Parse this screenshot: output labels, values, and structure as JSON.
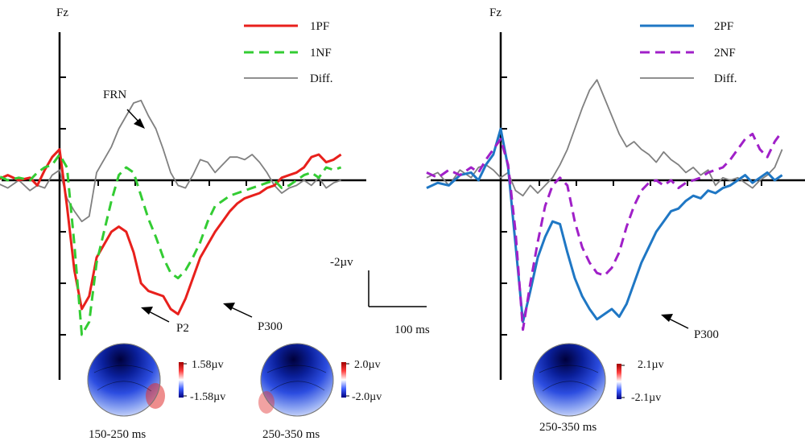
{
  "chart_data": [
    {
      "type": "line",
      "channel": "Fz",
      "x_unit": "ms",
      "y_unit": "µV",
      "y_orientation": "negative-down",
      "series": [
        {
          "name": "1PF",
          "color": "#e8201c",
          "dash": false,
          "x": [
            -200,
            -170,
            -140,
            -110,
            -80,
            -60,
            -40,
            -20,
            0,
            20,
            40,
            60,
            80,
            100,
            120,
            140,
            160,
            180,
            200,
            220,
            240,
            260,
            280,
            300,
            320,
            340,
            360,
            380,
            400,
            420,
            440,
            460,
            480,
            500,
            520,
            540,
            560,
            580,
            600,
            620,
            640,
            660,
            680,
            700,
            720,
            740,
            760
          ],
          "y": [
            0.1,
            0.0,
            0.2,
            0.0,
            0.1,
            -0.2,
            0.4,
            0.9,
            1.2,
            -1.0,
            -3.5,
            -5.0,
            -4.5,
            -3.0,
            -2.5,
            -2.0,
            -1.8,
            -2.0,
            -2.8,
            -4.0,
            -4.3,
            -4.4,
            -4.5,
            -5.0,
            -5.2,
            -4.6,
            -3.8,
            -3.0,
            -2.5,
            -2.0,
            -1.6,
            -1.2,
            -0.9,
            -0.7,
            -0.6,
            -0.5,
            -0.3,
            -0.2,
            0.1,
            0.2,
            0.3,
            0.5,
            0.9,
            1.0,
            0.7,
            0.8,
            1.0
          ]
        },
        {
          "name": "1NF",
          "color": "#33cc33",
          "dash": true,
          "x": [
            -200,
            -170,
            -140,
            -110,
            -80,
            -60,
            -40,
            -20,
            0,
            20,
            40,
            60,
            80,
            100,
            120,
            140,
            160,
            180,
            200,
            220,
            240,
            260,
            280,
            300,
            320,
            340,
            360,
            380,
            400,
            420,
            440,
            460,
            480,
            500,
            520,
            540,
            560,
            580,
            600,
            620,
            640,
            660,
            680,
            700,
            720,
            740,
            760
          ],
          "y": [
            0.1,
            0.2,
            0.0,
            0.1,
            0.0,
            0.3,
            0.5,
            0.6,
            1.0,
            0.5,
            -2.5,
            -6.0,
            -5.5,
            -3.2,
            -2.0,
            -0.8,
            0.2,
            0.5,
            0.3,
            -0.6,
            -1.5,
            -2.2,
            -3.0,
            -3.6,
            -3.8,
            -3.5,
            -3.0,
            -2.4,
            -1.6,
            -1.0,
            -0.8,
            -0.6,
            -0.5,
            -0.4,
            -0.3,
            -0.2,
            -0.1,
            0.0,
            -0.3,
            -0.2,
            0.0,
            0.2,
            0.3,
            0.1,
            0.5,
            0.4,
            0.5
          ]
        },
        {
          "name": "Diff.",
          "color": "#808080",
          "dash": false,
          "x": [
            -200,
            -170,
            -140,
            -110,
            -80,
            -60,
            -40,
            -20,
            0,
            20,
            40,
            60,
            80,
            100,
            120,
            140,
            160,
            180,
            200,
            220,
            240,
            260,
            280,
            300,
            320,
            340,
            360,
            380,
            400,
            420,
            440,
            460,
            480,
            500,
            520,
            540,
            560,
            580,
            600,
            620,
            640,
            660,
            680,
            700,
            720,
            740,
            760
          ],
          "y": [
            0.0,
            -0.1,
            -0.3,
            0.0,
            -0.4,
            -0.2,
            -0.3,
            0.2,
            0.4,
            -0.7,
            -1.2,
            -1.6,
            -1.4,
            0.3,
            0.8,
            1.3,
            2.0,
            2.5,
            3.0,
            3.1,
            2.5,
            2.0,
            1.2,
            0.3,
            -0.2,
            -0.3,
            0.2,
            0.8,
            0.7,
            0.3,
            0.6,
            0.9,
            0.9,
            0.8,
            1.0,
            0.7,
            0.3,
            -0.2,
            -0.5,
            -0.3,
            -0.2,
            0.0,
            -0.2,
            0.1,
            -0.3,
            -0.1,
            0.0
          ]
        }
      ],
      "annotations": [
        {
          "text": "FRN"
        },
        {
          "text": "P2"
        },
        {
          "text": "P300"
        }
      ],
      "scale_bar": {
        "amplitude_label": "-2µv",
        "time_label": "100 ms"
      },
      "topomaps": [
        {
          "window": "150-250 ms",
          "max_label": "1.58µv",
          "min_label": "-1.58µv"
        },
        {
          "window": "250-350 ms",
          "max_label": "2.0µv",
          "min_label": "-2.0µv"
        }
      ]
    },
    {
      "type": "line",
      "channel": "Fz",
      "x_unit": "ms",
      "y_unit": "µV",
      "y_orientation": "negative-down",
      "series": [
        {
          "name": "2PF",
          "color": "#1f77c4",
          "dash": false,
          "x": [
            -200,
            -170,
            -140,
            -110,
            -80,
            -60,
            -40,
            -20,
            0,
            20,
            40,
            60,
            80,
            100,
            120,
            140,
            160,
            180,
            200,
            220,
            240,
            260,
            280,
            300,
            320,
            340,
            360,
            380,
            400,
            420,
            440,
            460,
            480,
            500,
            520,
            540,
            560,
            580,
            600,
            620,
            640,
            660,
            680,
            700,
            720,
            740,
            760
          ],
          "y": [
            -0.3,
            -0.1,
            -0.2,
            0.2,
            0.3,
            0.0,
            0.6,
            1.0,
            2.0,
            0.5,
            -2.5,
            -5.5,
            -4.3,
            -3.0,
            -2.2,
            -1.6,
            -1.7,
            -2.8,
            -3.8,
            -4.5,
            -5.0,
            -5.4,
            -5.2,
            -5.0,
            -5.3,
            -4.8,
            -4.0,
            -3.2,
            -2.6,
            -2.0,
            -1.6,
            -1.2,
            -1.1,
            -0.8,
            -0.6,
            -0.7,
            -0.4,
            -0.5,
            -0.3,
            -0.2,
            0.0,
            0.2,
            -0.1,
            0.1,
            0.3,
            0.0,
            0.2
          ]
        },
        {
          "name": "2NF",
          "color": "#a020c8",
          "dash": true,
          "x": [
            -200,
            -170,
            -140,
            -110,
            -80,
            -60,
            -40,
            -20,
            0,
            20,
            40,
            60,
            80,
            100,
            120,
            140,
            160,
            180,
            200,
            220,
            240,
            260,
            280,
            300,
            320,
            340,
            360,
            380,
            400,
            420,
            440,
            460,
            480,
            500,
            520,
            540,
            560,
            580,
            600,
            620,
            640,
            660,
            680,
            700,
            720,
            740,
            760
          ],
          "y": [
            0.3,
            0.1,
            0.4,
            0.2,
            0.5,
            0.3,
            0.8,
            1.2,
            1.6,
            0.6,
            -2.0,
            -5.8,
            -4.0,
            -2.4,
            -1.0,
            -0.2,
            0.1,
            -0.2,
            -1.6,
            -2.6,
            -3.2,
            -3.6,
            -3.7,
            -3.4,
            -2.8,
            -1.8,
            -1.0,
            -0.4,
            -0.1,
            0.0,
            -0.2,
            0.0,
            -0.3,
            -0.1,
            0.0,
            0.1,
            0.3,
            0.4,
            0.5,
            0.8,
            1.2,
            1.6,
            1.8,
            1.2,
            0.9,
            1.5,
            1.9
          ]
        },
        {
          "name": "Diff.",
          "color": "#808080",
          "dash": false,
          "x": [
            -200,
            -170,
            -140,
            -110,
            -80,
            -60,
            -40,
            -20,
            0,
            20,
            40,
            60,
            80,
            100,
            120,
            140,
            160,
            180,
            200,
            220,
            240,
            260,
            280,
            300,
            320,
            340,
            360,
            380,
            400,
            420,
            440,
            460,
            480,
            500,
            520,
            540,
            560,
            580,
            600,
            620,
            640,
            660,
            680,
            700,
            720,
            740,
            760
          ],
          "y": [
            0.1,
            0.3,
            -0.2,
            0.4,
            0.1,
            0.5,
            0.6,
            0.4,
            0.1,
            0.3,
            -0.4,
            -0.6,
            -0.2,
            -0.5,
            -0.2,
            0.1,
            0.6,
            1.2,
            2.0,
            2.8,
            3.5,
            3.9,
            3.2,
            2.5,
            1.8,
            1.3,
            1.5,
            1.2,
            1.0,
            0.7,
            1.1,
            0.8,
            0.6,
            0.3,
            0.5,
            0.2,
            0.4,
            -0.2,
            0.1,
            0.0,
            0.1,
            -0.1,
            -0.3,
            0.0,
            0.2,
            0.5,
            1.2
          ]
        }
      ],
      "annotations": [
        {
          "text": "P300"
        }
      ],
      "topomaps": [
        {
          "window": "250-350 ms",
          "max_label": "2.1µv",
          "min_label": "-2.1µv"
        }
      ]
    }
  ]
}
